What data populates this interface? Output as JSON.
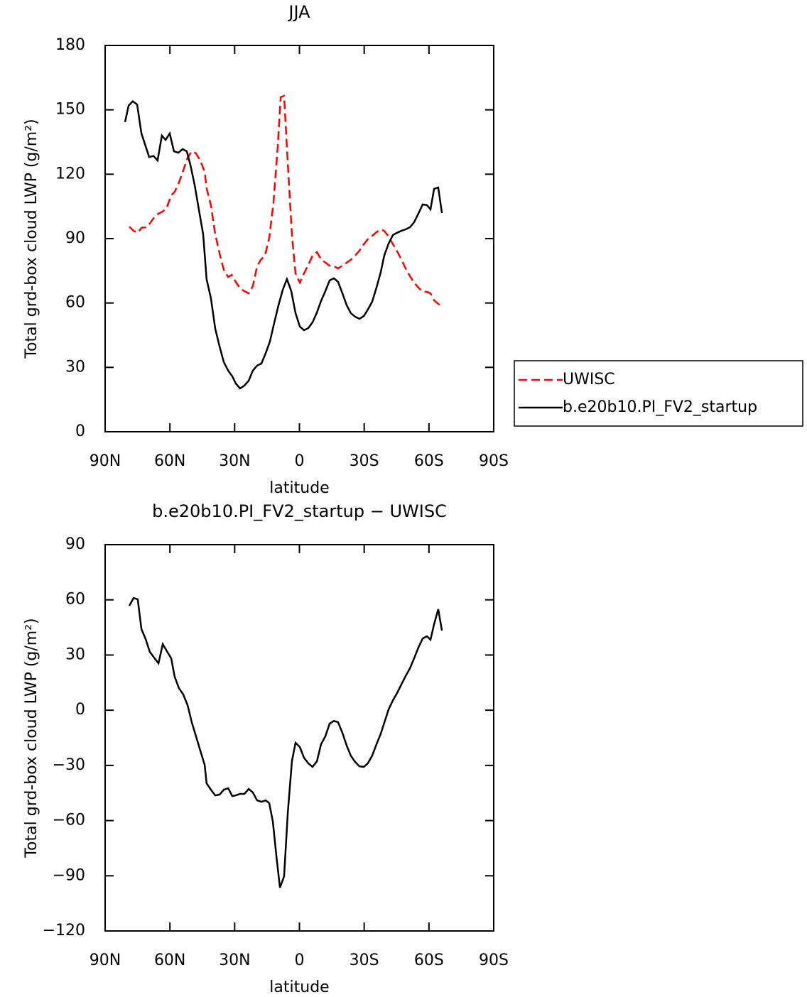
{
  "chart_data": [
    {
      "type": "line",
      "title": "JJA",
      "xlabel": "latitude",
      "ylabel": "Total grd-box cloud LWP (g/m²)",
      "xlim": [
        90,
        -90
      ],
      "xticks": [
        {
          "value": 90,
          "label": "90N"
        },
        {
          "value": 60,
          "label": "60N"
        },
        {
          "value": 30,
          "label": "30N"
        },
        0,
        {
          "value": -30,
          "label": "30S"
        },
        {
          "value": -60,
          "label": "60S"
        },
        {
          "value": -90,
          "label": "90S"
        }
      ],
      "ylim": [
        0,
        180
      ],
      "yticks": [
        0,
        30,
        60,
        90,
        120,
        150,
        180
      ],
      "legend": "outside-right",
      "series": [
        {
          "name": "UWISC",
          "color": "#ff0000",
          "line_style": "dashed",
          "x": [
            78.8,
            76.8,
            74.9,
            73.2,
            71.2,
            69.3,
            67.3,
            65.3,
            63.3,
            61.4,
            59.4,
            57.8,
            55.8,
            53.8,
            51.8,
            49.9,
            47.9,
            45.9,
            43.9,
            43,
            41,
            39,
            37,
            35,
            33,
            31.4,
            29.5,
            27.5,
            25.5,
            23.5,
            21.6,
            19.6,
            17.9,
            16,
            14,
            12,
            10,
            8.7,
            7.1,
            5.4,
            3.5,
            1.8,
            -0.2,
            -2.1,
            -4.1,
            -6.1,
            -8.1,
            -10,
            -12,
            -14,
            -16,
            -17.9,
            -19.9,
            -21.9,
            -23.8,
            -25.8,
            -27.8,
            -29.8,
            -31.7,
            -33.7,
            -35.7,
            -37.7,
            -39.3,
            -41.3,
            -43.3,
            -45.2,
            -47.2,
            -49.2,
            -51.2,
            -53.1,
            -55.1,
            -57.1,
            -59.1,
            -60.7,
            -62.4,
            -64.3,
            -66
          ],
          "values": [
            95.6,
            93.6,
            92.7,
            95,
            95.3,
            97,
            99.9,
            101.6,
            102.6,
            104.6,
            110.2,
            111.8,
            116.1,
            121.8,
            127.7,
            130.7,
            129.7,
            126.4,
            121.1,
            113.5,
            105.6,
            92,
            83.1,
            75.4,
            72.1,
            73.1,
            69.8,
            66.8,
            65.5,
            64.5,
            67.8,
            77.1,
            80.1,
            82.1,
            90.3,
            106.9,
            133.4,
            155.9,
            156.5,
            125.1,
            92,
            73.8,
            69.5,
            73.8,
            77.8,
            82.1,
            83.7,
            80.4,
            78.8,
            77.4,
            77.1,
            76.1,
            77.4,
            78.8,
            80.1,
            82.1,
            84.4,
            87.4,
            89.7,
            91.3,
            93,
            94.3,
            93.6,
            91,
            87.4,
            84.1,
            80.4,
            76.1,
            72.5,
            69.5,
            67.2,
            65.2,
            65.2,
            64.5,
            61.2,
            59.6,
            58.6
          ]
        },
        {
          "name": "b.e20b10.PI_FV2_startup",
          "color": "#000000",
          "line_style": "solid",
          "x": [
            80.8,
            79.1,
            77.2,
            75.2,
            73.2,
            69.6,
            67.6,
            65.7,
            63.7,
            62,
            60.1,
            58.1,
            56.1,
            54.1,
            52.2,
            50.5,
            48.5,
            46.6,
            44.6,
            43,
            41,
            39,
            37,
            35,
            33,
            31.1,
            29.5,
            27.5,
            25.5,
            23.5,
            21.6,
            19.6,
            17.6,
            15.6,
            13.7,
            11.7,
            9.7,
            7.7,
            5.8,
            3.8,
            1.8,
            -0.2,
            -2.1,
            -4.1,
            -6.1,
            -8.1,
            -10,
            -12,
            -14,
            -16,
            -17.9,
            -19.9,
            -21.9,
            -23.8,
            -25.8,
            -27.8,
            -29.8,
            -31.7,
            -33.7,
            -35.7,
            -37.7,
            -39.3,
            -41.3,
            -43.3,
            -45.2,
            -47.2,
            -49.2,
            -51.2,
            -53.1,
            -55.1,
            -57.1,
            -59.1,
            -60.7,
            -62.4,
            -64.3,
            -66
          ],
          "values": [
            144.3,
            152,
            154,
            152.5,
            139,
            128,
            128.5,
            126.4,
            138,
            136,
            139,
            130.7,
            130,
            131.7,
            130.7,
            124.4,
            114.8,
            103.6,
            92,
            71.1,
            62.2,
            48,
            39.7,
            32.4,
            28.5,
            25.8,
            22.5,
            20.2,
            21.5,
            23.8,
            28.5,
            30.8,
            31.8,
            36.7,
            42,
            50.6,
            58.9,
            66.2,
            71.1,
            65.5,
            55.3,
            49,
            47.3,
            48.3,
            51,
            55.6,
            60.9,
            65.5,
            70.5,
            71.5,
            69.8,
            64.5,
            58.9,
            55.3,
            53.6,
            52.6,
            53.9,
            56.9,
            60.6,
            67.2,
            74.5,
            82.1,
            87.7,
            91.7,
            92.7,
            93.6,
            94.3,
            95.3,
            97.6,
            101.6,
            105.9,
            105.6,
            103.6,
            113.2,
            113.8,
            101.9
          ]
        }
      ]
    },
    {
      "type": "line",
      "title": "b.e20b10.PI_FV2_startup − UWISC",
      "xlabel": "latitude",
      "ylabel": "Total grd-box cloud LWP (g/m²)",
      "xlim": [
        90,
        -90
      ],
      "xticks": [
        {
          "value": 90,
          "label": "90N"
        },
        {
          "value": 60,
          "label": "60N"
        },
        {
          "value": 30,
          "label": "30N"
        },
        0,
        {
          "value": -30,
          "label": "30S"
        },
        {
          "value": -60,
          "label": "60S"
        },
        {
          "value": -90,
          "label": "90S"
        }
      ],
      "ylim": [
        -120,
        90
      ],
      "yticks": [
        {
          "value": -120,
          "label": "−120"
        },
        {
          "value": -90,
          "label": "−90"
        },
        {
          "value": -60,
          "label": "−60"
        },
        {
          "value": -30,
          "label": "−30"
        },
        0,
        30,
        60,
        90
      ],
      "series": [
        {
          "color": "#000000",
          "line_style": "solid",
          "x": [
            78.8,
            76.8,
            74.9,
            73.2,
            71.2,
            69.3,
            67.3,
            65.3,
            63.3,
            61.4,
            59.4,
            57.8,
            55.8,
            53.8,
            51.8,
            49.9,
            47.9,
            45.9,
            43.9,
            43,
            41,
            39,
            37,
            35,
            33,
            31.1,
            29.5,
            27.5,
            25.5,
            23.5,
            21.6,
            19.6,
            17.6,
            15.6,
            14,
            12.3,
            10.7,
            9,
            7.1,
            5.4,
            3.5,
            1.8,
            -0.2,
            -2.1,
            -4.1,
            -6.1,
            -8.1,
            -10,
            -12,
            -14,
            -16,
            -17.9,
            -19.9,
            -21.9,
            -23.8,
            -25.8,
            -27.8,
            -29.8,
            -31.7,
            -33.7,
            -35.7,
            -37.7,
            -39.3,
            -41.3,
            -43.3,
            -45.2,
            -47.2,
            -49.2,
            -51.2,
            -53.1,
            -55.1,
            -57.1,
            -59.1,
            -60.7,
            -62.4,
            -64.3,
            -66
          ],
          "values": [
            56.8,
            61,
            60.3,
            44.1,
            38.6,
            31.7,
            28.6,
            25.5,
            35.9,
            32.1,
            28.2,
            18.2,
            12,
            8.5,
            2.7,
            -6.5,
            -14.2,
            -22,
            -29.7,
            -39.7,
            -43.2,
            -46.3,
            -45.9,
            -43.2,
            -42.4,
            -46.7,
            -46.3,
            -45.5,
            -45.5,
            -42.8,
            -44.7,
            -49,
            -49.8,
            -49,
            -50.5,
            -60.6,
            -79.1,
            -96.5,
            -90.3,
            -55.9,
            -27.8,
            -17.7,
            -20,
            -25.8,
            -28.9,
            -30.8,
            -27.8,
            -18.5,
            -14.2,
            -7.3,
            -5.8,
            -6.5,
            -12.3,
            -19.3,
            -24.7,
            -28.1,
            -30.5,
            -30.8,
            -28.9,
            -24.7,
            -18.5,
            -12.7,
            -6.9,
            0.4,
            5.4,
            9.3,
            13.9,
            18.6,
            22.8,
            28.2,
            34,
            39,
            40.2,
            38.3,
            46.8,
            54.9,
            43.3
          ]
        }
      ]
    }
  ]
}
